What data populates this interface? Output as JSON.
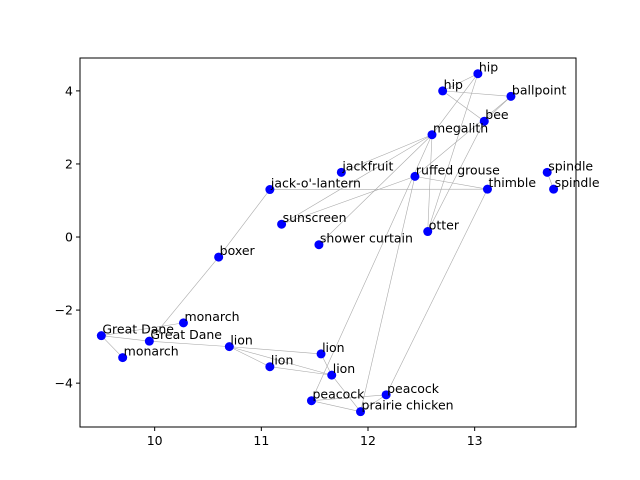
{
  "chart_data": {
    "type": "scatter",
    "title": "",
    "xlabel": "",
    "ylabel": "",
    "xlim": [
      9.3,
      13.95
    ],
    "ylim": [
      -5.2,
      4.9
    ],
    "xticks": [
      10,
      11,
      12,
      13
    ],
    "yticks": [
      -4,
      -2,
      0,
      2,
      4
    ],
    "grid": false,
    "point_color": "#0000ff",
    "edge_color": "#aaaaaa",
    "points": [
      {
        "id": 0,
        "label": "hip",
        "x": 13.03,
        "y": 4.47
      },
      {
        "id": 1,
        "label": "hip",
        "x": 12.7,
        "y": 4.0
      },
      {
        "id": 2,
        "label": "ballpoint",
        "x": 13.34,
        "y": 3.85
      },
      {
        "id": 3,
        "label": "bee",
        "x": 13.09,
        "y": 3.17
      },
      {
        "id": 4,
        "label": "megalith",
        "x": 12.6,
        "y": 2.8
      },
      {
        "id": 5,
        "label": "jackfruit",
        "x": 11.75,
        "y": 1.77
      },
      {
        "id": 6,
        "label": "ruffed grouse",
        "x": 12.44,
        "y": 1.66
      },
      {
        "id": 7,
        "label": "spindle",
        "x": 13.68,
        "y": 1.77
      },
      {
        "id": 8,
        "label": "thimble",
        "x": 13.12,
        "y": 1.31
      },
      {
        "id": 9,
        "label": "spindle",
        "x": 13.74,
        "y": 1.31
      },
      {
        "id": 10,
        "label": "jack-o'-lantern",
        "x": 11.08,
        "y": 1.3
      },
      {
        "id": 11,
        "label": "sunscreen",
        "x": 11.19,
        "y": 0.35
      },
      {
        "id": 12,
        "label": "shower curtain",
        "x": 11.54,
        "y": -0.21
      },
      {
        "id": 13,
        "label": "otter",
        "x": 12.56,
        "y": 0.15
      },
      {
        "id": 14,
        "label": "boxer",
        "x": 10.6,
        "y": -0.55
      },
      {
        "id": 15,
        "label": "monarch",
        "x": 10.27,
        "y": -2.35
      },
      {
        "id": 16,
        "label": "Great Dane",
        "x": 9.5,
        "y": -2.7
      },
      {
        "id": 17,
        "label": "Great Dane",
        "x": 9.95,
        "y": -2.85
      },
      {
        "id": 18,
        "label": "monarch",
        "x": 9.7,
        "y": -3.3
      },
      {
        "id": 19,
        "label": "lion",
        "x": 10.7,
        "y": -3.0
      },
      {
        "id": 20,
        "label": "lion",
        "x": 11.56,
        "y": -3.2
      },
      {
        "id": 21,
        "label": "lion",
        "x": 11.08,
        "y": -3.55
      },
      {
        "id": 22,
        "label": "lion",
        "x": 11.66,
        "y": -3.78
      },
      {
        "id": 23,
        "label": "peacock",
        "x": 12.17,
        "y": -4.32
      },
      {
        "id": 24,
        "label": "peacock",
        "x": 11.47,
        "y": -4.48
      },
      {
        "id": 25,
        "label": "prairie chicken",
        "x": 11.93,
        "y": -4.78
      }
    ],
    "edges": [
      [
        0,
        1
      ],
      [
        0,
        4
      ],
      [
        0,
        13
      ],
      [
        1,
        3
      ],
      [
        1,
        2
      ],
      [
        2,
        3
      ],
      [
        2,
        6
      ],
      [
        3,
        13
      ],
      [
        4,
        5
      ],
      [
        4,
        12
      ],
      [
        4,
        11
      ],
      [
        4,
        24
      ],
      [
        4,
        13
      ],
      [
        6,
        11
      ],
      [
        6,
        8
      ],
      [
        8,
        10
      ],
      [
        8,
        23
      ],
      [
        7,
        9
      ],
      [
        10,
        14
      ],
      [
        14,
        17
      ],
      [
        15,
        16
      ],
      [
        16,
        17
      ],
      [
        16,
        18
      ],
      [
        17,
        19
      ],
      [
        19,
        20
      ],
      [
        19,
        21
      ],
      [
        19,
        22
      ],
      [
        20,
        22
      ],
      [
        21,
        22
      ],
      [
        22,
        25
      ],
      [
        23,
        24
      ],
      [
        23,
        25
      ],
      [
        24,
        25
      ],
      [
        25,
        6
      ]
    ]
  }
}
